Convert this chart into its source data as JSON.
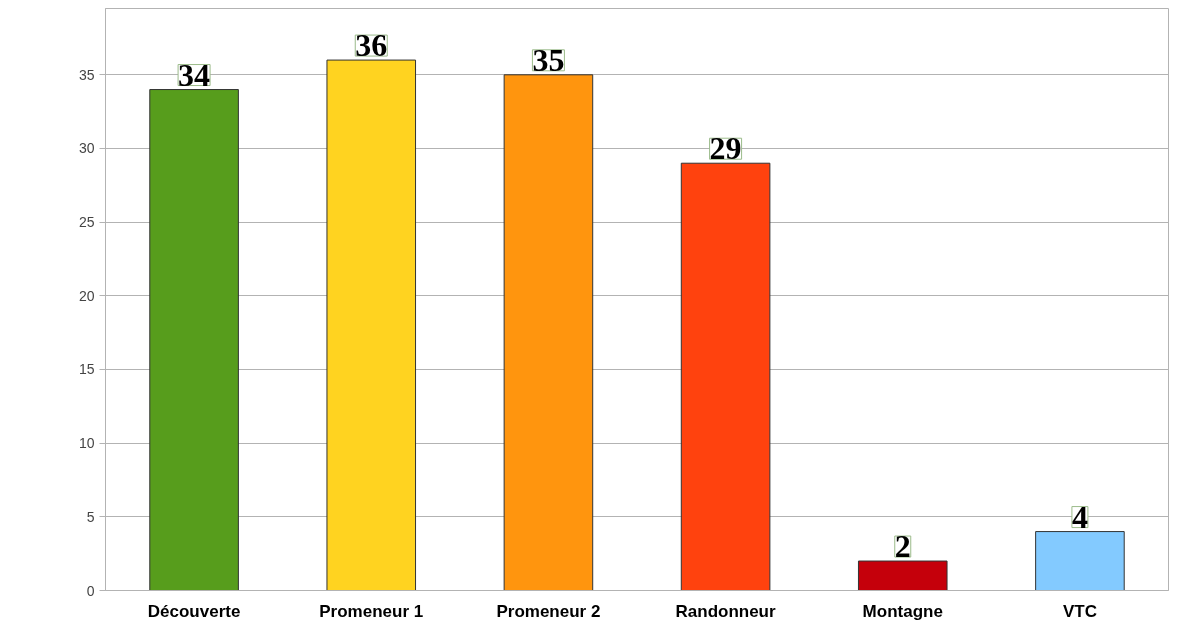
{
  "chart_data": {
    "type": "bar",
    "categories": [
      "Découverte",
      "Promeneur 1",
      "Promeneur 2",
      "Randonneur",
      "Montagne",
      "VTC"
    ],
    "values": [
      34,
      36,
      35,
      29,
      2,
      4
    ],
    "colors": [
      "#579d1c",
      "#ffd320",
      "#ff950e",
      "#ff420e",
      "#c5000b",
      "#83caff"
    ],
    "ylim": [
      0,
      39.5
    ],
    "yticks": [
      0,
      5,
      10,
      15,
      20,
      25,
      30,
      35
    ],
    "grid": "y",
    "data_labels": true
  }
}
